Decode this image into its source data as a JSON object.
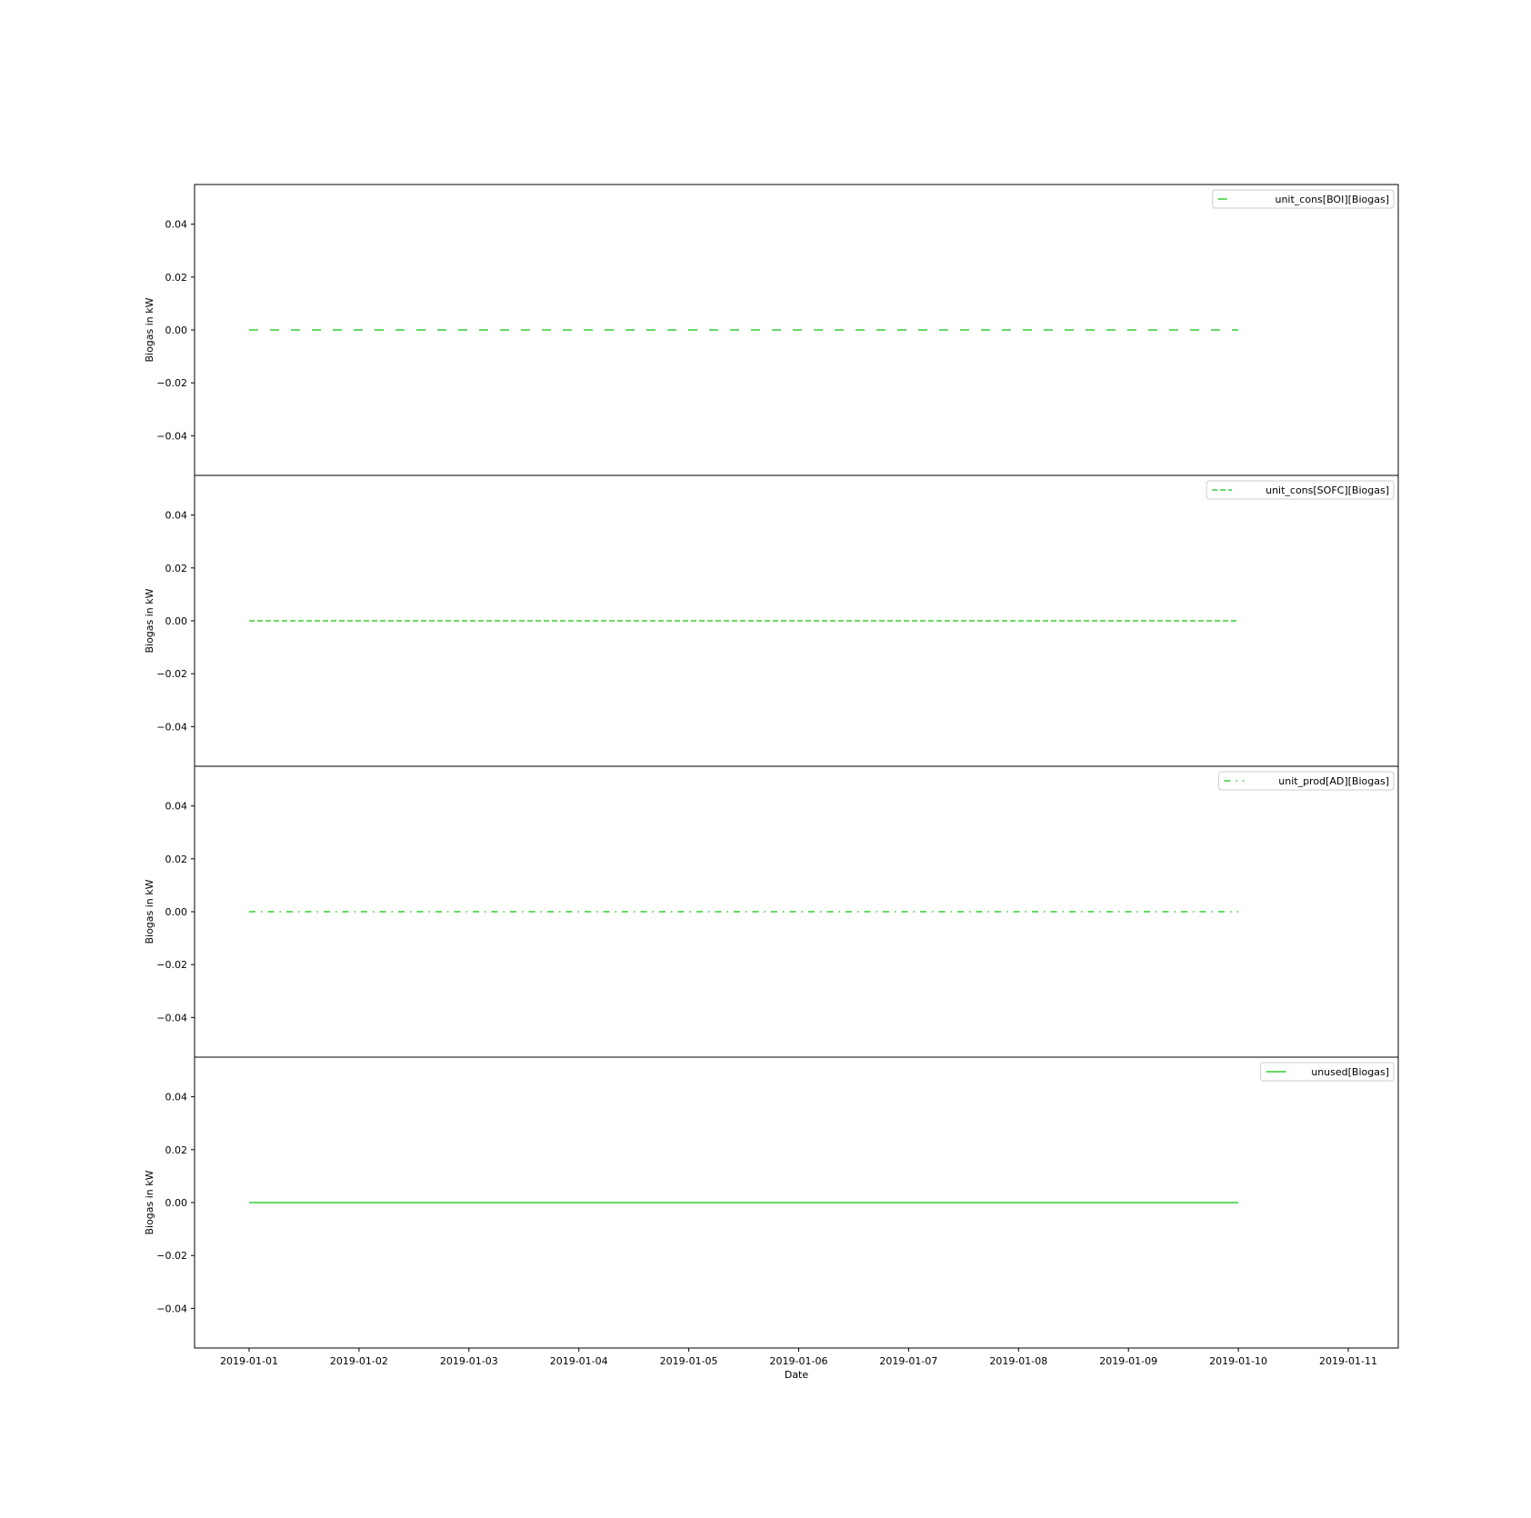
{
  "chart_data": {
    "type": "line",
    "shared_x": true,
    "xlabel": "Date",
    "x_ticks": [
      "2019-01-01",
      "2019-01-02",
      "2019-01-03",
      "2019-01-04",
      "2019-01-05",
      "2019-01-06",
      "2019-01-07",
      "2019-01-08",
      "2019-01-09",
      "2019-01-10",
      "2019-01-11"
    ],
    "xlim": [
      "2019-01-01",
      "2019-01-11"
    ],
    "x_range_label": "2019-01-01 to 2019-01-10 (data span)",
    "grid": false,
    "panels": [
      {
        "ylabel": "Biogas in kW",
        "ylim": [
          -0.055,
          0.055
        ],
        "y_ticks": [
          "0.04",
          "0.02",
          "0.00",
          "−0.02",
          "−0.04"
        ],
        "legend_position": "top-right",
        "series": [
          {
            "name": "unit_cons[BOI][Biogas]",
            "line_style": "dashed-wide",
            "color": "#32cd32",
            "x": [
              "2019-01-01",
              "2019-01-10"
            ],
            "y": [
              0.0,
              0.0
            ]
          }
        ]
      },
      {
        "ylabel": "Biogas in kW",
        "ylim": [
          -0.055,
          0.055
        ],
        "y_ticks": [
          "0.04",
          "0.02",
          "0.00",
          "−0.02",
          "−0.04"
        ],
        "legend_position": "top-right",
        "series": [
          {
            "name": "unit_cons[SOFC][Biogas]",
            "line_style": "dashed",
            "color": "#32cd32",
            "x": [
              "2019-01-01",
              "2019-01-10"
            ],
            "y": [
              0.0,
              0.0
            ]
          }
        ]
      },
      {
        "ylabel": "Biogas in kW",
        "ylim": [
          -0.055,
          0.055
        ],
        "y_ticks": [
          "0.04",
          "0.02",
          "0.00",
          "−0.02",
          "−0.04"
        ],
        "legend_position": "top-right",
        "series": [
          {
            "name": "unit_prod[AD][Biogas]",
            "line_style": "dash-dot",
            "color": "#32cd32",
            "x": [
              "2019-01-01",
              "2019-01-10"
            ],
            "y": [
              0.0,
              0.0
            ]
          }
        ]
      },
      {
        "ylabel": "Biogas in kW",
        "ylim": [
          -0.055,
          0.055
        ],
        "y_ticks": [
          "0.04",
          "0.02",
          "0.00",
          "−0.02",
          "−0.04"
        ],
        "legend_position": "top-right",
        "series": [
          {
            "name": "unused[Biogas]",
            "line_style": "solid",
            "color": "#32cd32",
            "x": [
              "2019-01-01",
              "2019-01-10"
            ],
            "y": [
              0.0,
              0.0
            ]
          }
        ]
      }
    ]
  }
}
